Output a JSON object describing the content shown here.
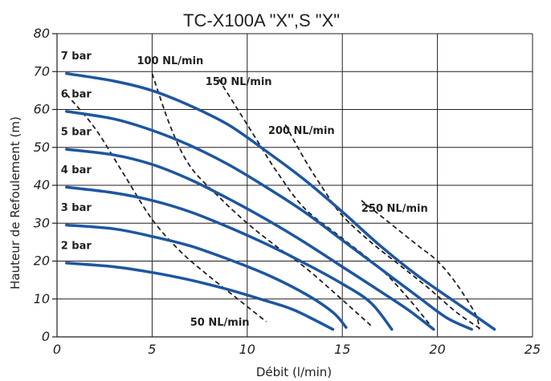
{
  "chart_data": {
    "type": "line",
    "title": "TC-X100A \"X\",S \"X\"",
    "xlabel": "Débit (l/min)",
    "ylabel": "Hauteur de Refoulement (m)",
    "xlim": [
      0,
      25
    ],
    "ylim": [
      0,
      80
    ],
    "x_ticks": [
      "0",
      "5",
      "10",
      "15",
      "20",
      "25"
    ],
    "y_ticks": [
      "0",
      "10",
      "20",
      "30",
      "40",
      "50",
      "60",
      "70",
      "80"
    ],
    "grid": true,
    "series": [
      {
        "name": "7 bar",
        "kind": "pressure",
        "color": "#1d56a0",
        "points": [
          [
            0.5,
            69.5
          ],
          [
            3,
            67.5
          ],
          [
            5,
            65
          ],
          [
            7,
            61
          ],
          [
            9,
            56
          ],
          [
            11,
            49
          ],
          [
            13,
            41.5
          ],
          [
            15,
            33
          ],
          [
            17,
            24
          ],
          [
            19,
            16
          ],
          [
            21,
            9
          ],
          [
            23,
            2
          ]
        ]
      },
      {
        "name": "6 bar",
        "kind": "pressure",
        "color": "#1d56a0",
        "points": [
          [
            0.5,
            59.5
          ],
          [
            3,
            57.5
          ],
          [
            5,
            54.5
          ],
          [
            7,
            50.5
          ],
          [
            9,
            45.5
          ],
          [
            11,
            39.5
          ],
          [
            13,
            33
          ],
          [
            15,
            25.5
          ],
          [
            17,
            18
          ],
          [
            19,
            10.5
          ],
          [
            20.5,
            5
          ],
          [
            21.8,
            2
          ]
        ]
      },
      {
        "name": "5 bar",
        "kind": "pressure",
        "color": "#1d56a0",
        "points": [
          [
            0.5,
            49.5
          ],
          [
            3,
            48
          ],
          [
            5,
            45.5
          ],
          [
            7,
            41.5
          ],
          [
            9,
            36.5
          ],
          [
            11,
            31
          ],
          [
            13,
            25
          ],
          [
            15,
            18.5
          ],
          [
            17,
            12
          ],
          [
            18.5,
            7
          ],
          [
            19.8,
            2
          ]
        ]
      },
      {
        "name": "4 bar",
        "kind": "pressure",
        "color": "#1d56a0",
        "points": [
          [
            0.5,
            39.5
          ],
          [
            3,
            38
          ],
          [
            5,
            36
          ],
          [
            7,
            33
          ],
          [
            9,
            29
          ],
          [
            11,
            24.5
          ],
          [
            13,
            19.5
          ],
          [
            15,
            14
          ],
          [
            16.5,
            9
          ],
          [
            17.6,
            2
          ]
        ]
      },
      {
        "name": "3 bar",
        "kind": "pressure",
        "color": "#1d56a0",
        "points": [
          [
            0.5,
            29.5
          ],
          [
            3,
            28.5
          ],
          [
            5,
            26.5
          ],
          [
            7,
            24
          ],
          [
            9,
            20.5
          ],
          [
            11,
            16.5
          ],
          [
            13,
            11.5
          ],
          [
            14.5,
            6.5
          ],
          [
            15.2,
            2.5
          ]
        ]
      },
      {
        "name": "2 bar",
        "kind": "pressure",
        "color": "#1d56a0",
        "points": [
          [
            0.5,
            19.5
          ],
          [
            3,
            18.5
          ],
          [
            5,
            17
          ],
          [
            7,
            15
          ],
          [
            9,
            12.5
          ],
          [
            11,
            9.5
          ],
          [
            12.5,
            7
          ],
          [
            14.5,
            2
          ]
        ]
      },
      {
        "name": "50 NL/min",
        "kind": "air",
        "color": "#231f20",
        "points": [
          [
            0.5,
            64
          ],
          [
            2,
            55
          ],
          [
            3.5,
            43
          ],
          [
            5,
            31
          ],
          [
            6.5,
            22.5
          ],
          [
            8,
            16
          ],
          [
            9.5,
            10
          ],
          [
            11,
            4
          ]
        ]
      },
      {
        "name": "100 NL/min",
        "kind": "air",
        "color": "#231f20",
        "points": [
          [
            5,
            69.5
          ],
          [
            6,
            55
          ],
          [
            7,
            45
          ],
          [
            8.5,
            37
          ],
          [
            10,
            30
          ],
          [
            11.5,
            24
          ],
          [
            13,
            18.5
          ],
          [
            14.5,
            12
          ],
          [
            16.5,
            3
          ]
        ]
      },
      {
        "name": "150 NL/min",
        "kind": "air",
        "color": "#231f20",
        "points": [
          [
            8.5,
            68
          ],
          [
            9.5,
            60
          ],
          [
            10.5,
            52
          ],
          [
            11.5,
            44
          ],
          [
            13,
            34
          ],
          [
            15,
            26
          ],
          [
            17,
            18
          ],
          [
            18.5,
            10
          ],
          [
            19.8,
            2
          ]
        ]
      },
      {
        "name": "200 NL/min",
        "kind": "air",
        "color": "#231f20",
        "points": [
          [
            12,
            56
          ],
          [
            13,
            47
          ],
          [
            14,
            39
          ],
          [
            15,
            32
          ],
          [
            16.5,
            25
          ],
          [
            18,
            19
          ],
          [
            19.5,
            13
          ],
          [
            21,
            6.5
          ],
          [
            22.3,
            2
          ]
        ]
      },
      {
        "name": "250 NL/min",
        "kind": "air",
        "color": "#231f20",
        "points": [
          [
            16,
            36
          ],
          [
            17,
            32
          ],
          [
            18,
            28
          ],
          [
            19,
            24
          ],
          [
            20,
            20
          ],
          [
            21,
            14
          ],
          [
            22,
            6
          ],
          [
            22.2,
            2
          ]
        ]
      }
    ],
    "annotations": [
      {
        "text": "7 bar",
        "anchor": [
          0.2,
          73.2
        ]
      },
      {
        "text": "6 bar",
        "anchor": [
          0.2,
          63.2
        ]
      },
      {
        "text": "5 bar",
        "anchor": [
          0.2,
          53.2
        ]
      },
      {
        "text": "4 bar",
        "anchor": [
          0.2,
          43.2
        ]
      },
      {
        "text": "3 bar",
        "anchor": [
          0.2,
          33.2
        ]
      },
      {
        "text": "2 bar",
        "anchor": [
          0.2,
          23.2
        ]
      },
      {
        "text": "100 NL/min",
        "anchor": [
          4.2,
          72
        ]
      },
      {
        "text": "150 NL/min",
        "anchor": [
          7.8,
          66.5
        ]
      },
      {
        "text": "200 NL/min",
        "anchor": [
          11.1,
          53.5
        ]
      },
      {
        "text": "250 NL/min",
        "anchor": [
          16,
          33
        ]
      },
      {
        "text": "50 NL/min",
        "anchor": [
          7,
          3
        ]
      }
    ]
  }
}
